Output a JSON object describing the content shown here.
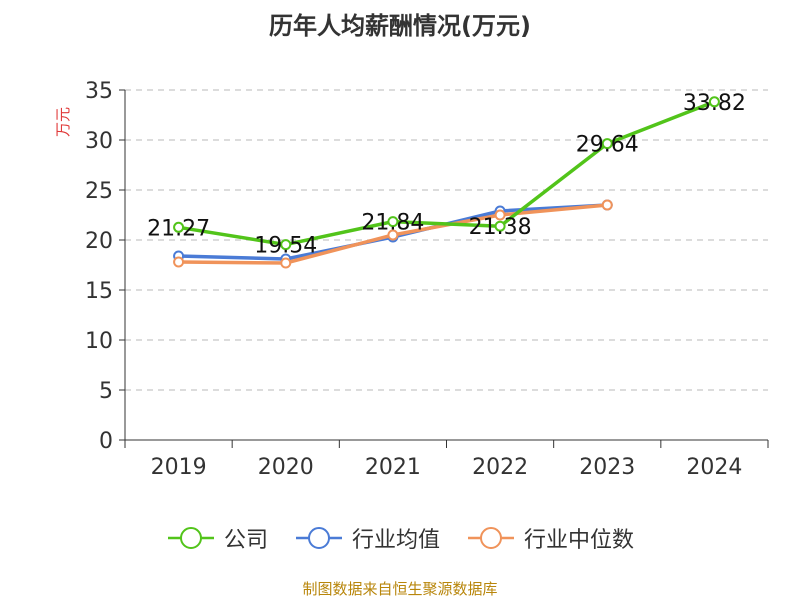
{
  "chart_data": {
    "type": "line",
    "title": "历年人均薪酬情况(万元)",
    "ylabel": "万元",
    "xlabel": "",
    "categories": [
      "2019",
      "2020",
      "2021",
      "2022",
      "2023",
      "2024"
    ],
    "ylim": [
      0,
      35
    ],
    "yticks": [
      0,
      5,
      10,
      15,
      20,
      25,
      30,
      35
    ],
    "grid": true,
    "legend_position": "bottom",
    "series": [
      {
        "name": "公司",
        "color": "#52c41a",
        "values": [
          21.27,
          19.54,
          21.84,
          21.38,
          29.64,
          33.82
        ],
        "labels": [
          "21.27",
          "19.54",
          "21.84",
          "21.38",
          "29.64",
          "33.82"
        ]
      },
      {
        "name": "行业均值",
        "color": "#4a7bd6",
        "values": [
          18.4,
          18.1,
          20.3,
          22.9,
          23.5,
          null
        ]
      },
      {
        "name": "行业中位数",
        "color": "#f0935a",
        "values": [
          17.8,
          17.7,
          20.5,
          22.5,
          23.5,
          null
        ]
      }
    ]
  },
  "source_text": "制图数据来自恒生聚源数据库"
}
